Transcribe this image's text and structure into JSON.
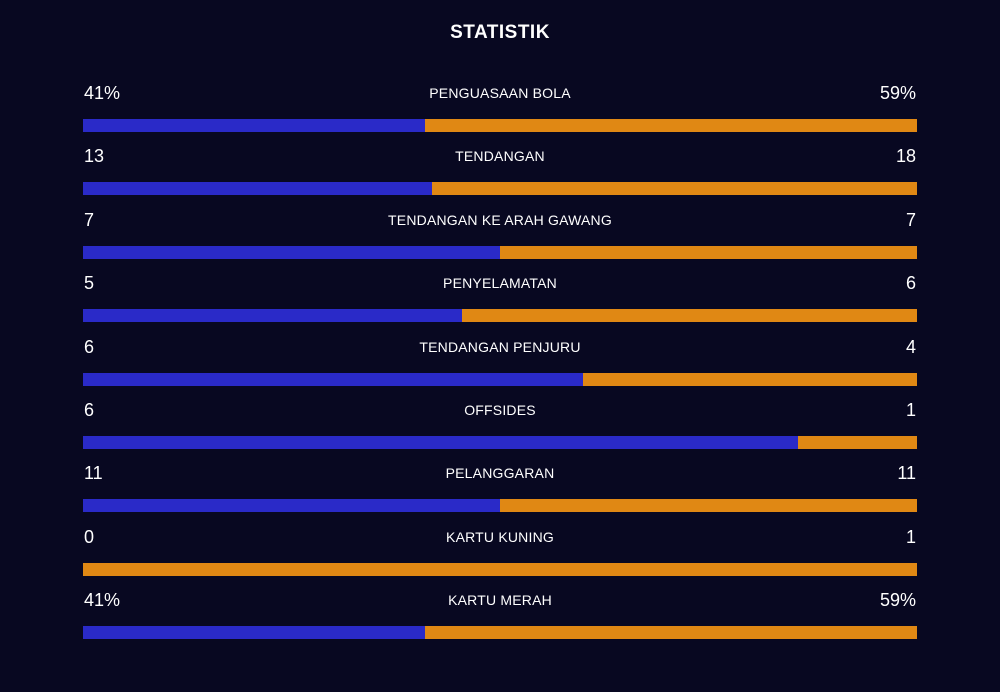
{
  "title": "STATISTIK",
  "colors": {
    "background": "#080821",
    "home": "#2a2ac8",
    "away": "#e08814"
  },
  "stats": [
    {
      "label": "PENGUASAAN BOLA",
      "home": "41%",
      "away": "59%",
      "home_share": 0.41
    },
    {
      "label": "TENDANGAN",
      "home": "13",
      "away": "18",
      "home_share": 0.419
    },
    {
      "label": "TENDANGAN KE ARAH GAWANG",
      "home": "7",
      "away": "7",
      "home_share": 0.5
    },
    {
      "label": "PENYELAMATAN",
      "home": "5",
      "away": "6",
      "home_share": 0.455
    },
    {
      "label": "TENDANGAN PENJURU",
      "home": "6",
      "away": "4",
      "home_share": 0.6
    },
    {
      "label": "OFFSIDES",
      "home": "6",
      "away": "1",
      "home_share": 0.857
    },
    {
      "label": "PELANGGARAN",
      "home": "11",
      "away": "11",
      "home_share": 0.5
    },
    {
      "label": "KARTU KUNING",
      "home": "0",
      "away": "1",
      "home_share": 0.0
    },
    {
      "label": "KARTU MERAH",
      "home": "41%",
      "away": "59%",
      "home_share": 0.41
    }
  ]
}
